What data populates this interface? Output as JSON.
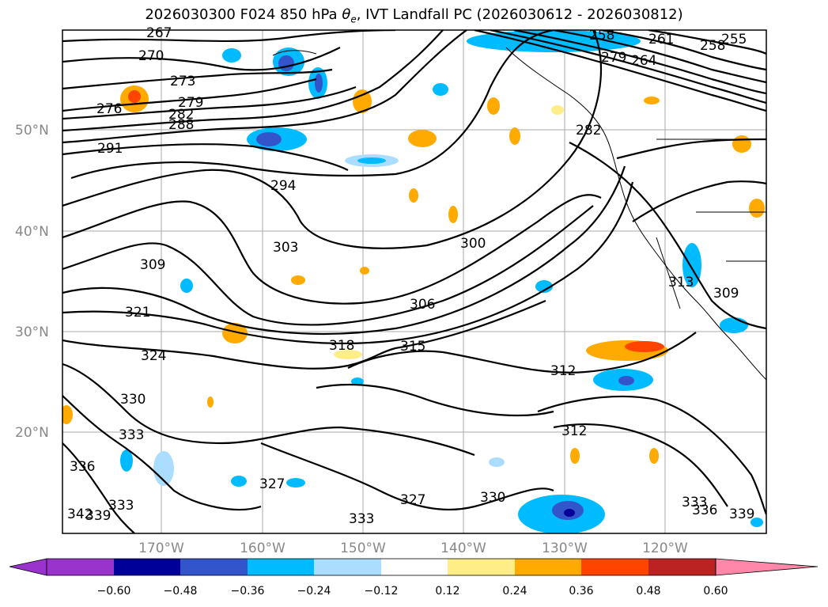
{
  "title_main": "2026030300 F024 850 hPa ",
  "title_theta": "θ",
  "title_theta_sub": "e",
  "title_rest": ", IVT Landfall PC (2026030612 - 2026030812)",
  "lat_labels": [
    "50°N",
    "40°N",
    "30°N",
    "20°N"
  ],
  "lon_labels": [
    "170°W",
    "160°W",
    "150°W",
    "140°W",
    "130°W",
    "120°W"
  ],
  "contour_labels": [
    "267",
    "270",
    "273",
    "276",
    "279",
    "282",
    "288",
    "291",
    "294",
    "303",
    "309",
    "321",
    "324",
    "330",
    "333",
    "336",
    "339",
    "342",
    "327",
    "333",
    "318",
    "315",
    "306",
    "300",
    "312",
    "312",
    "327",
    "330",
    "333",
    "282",
    "261",
    "258",
    "255",
    "264",
    "258",
    "279",
    "313",
    "309",
    "339",
    "336",
    "333"
  ],
  "colorbar": {
    "ticks": [
      "−0.60",
      "−0.48",
      "−0.36",
      "−0.24",
      "−0.12",
      "0.12",
      "0.24",
      "0.36",
      "0.48",
      "0.60"
    ],
    "colors": [
      "#9933cc",
      "#000099",
      "#3355cc",
      "#00bbff",
      "#aaddff",
      "#ffffff",
      "#ffee88",
      "#ffaa00",
      "#ff4400",
      "#bb2222",
      "#ff88aa"
    ]
  }
}
